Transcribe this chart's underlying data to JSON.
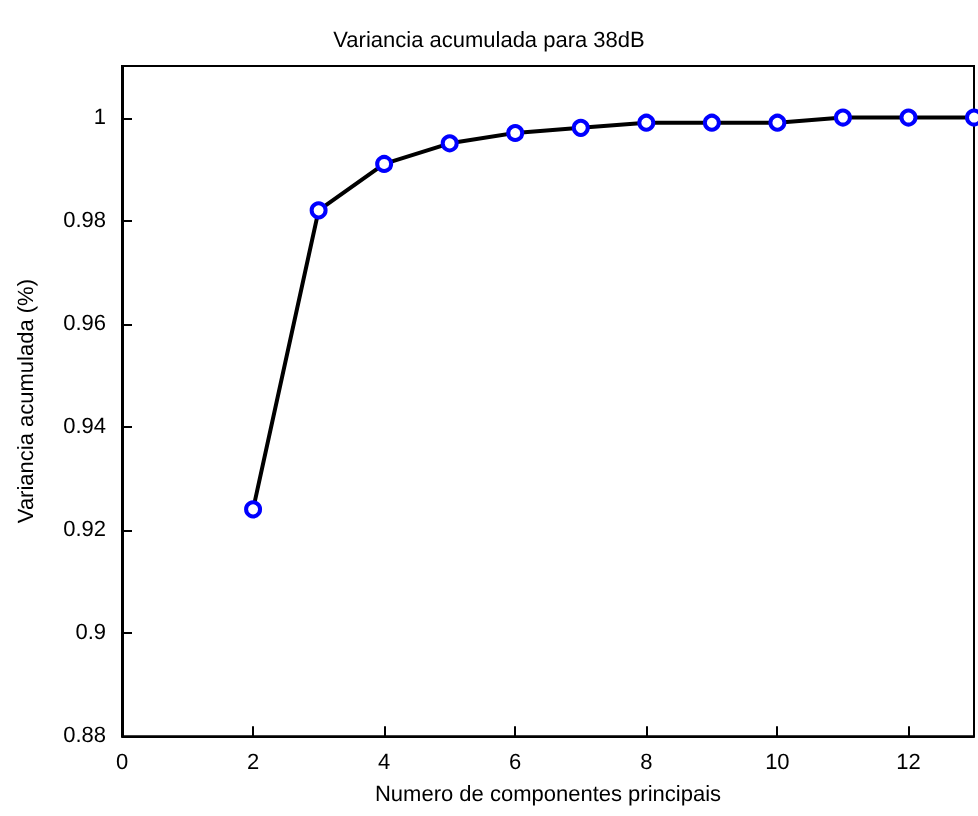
{
  "chart_data": {
    "type": "line",
    "title": "Variancia acumulada para 38dB",
    "xlabel": "Numero de componentes principais",
    "ylabel": "Variancia acumulada (%)",
    "x": [
      2,
      3,
      4,
      5,
      6,
      7,
      8,
      9,
      10,
      11,
      12,
      13
    ],
    "series": [
      {
        "color": "#0000ff",
        "values": [
          0.924,
          0.982,
          0.991,
          0.995,
          0.997,
          0.998,
          0.999,
          0.999,
          0.999,
          1.0,
          1.0,
          1.0
        ]
      }
    ],
    "xlim": [
      0,
      13
    ],
    "xticks": [
      0,
      2,
      4,
      6,
      8,
      10,
      12
    ],
    "ylim": [
      0.88,
      1.01
    ],
    "yticks": [
      0.88,
      0.9,
      0.92,
      0.94,
      0.96,
      0.98,
      1
    ],
    "grid": false,
    "marker": "circle",
    "line_style": "solid"
  }
}
